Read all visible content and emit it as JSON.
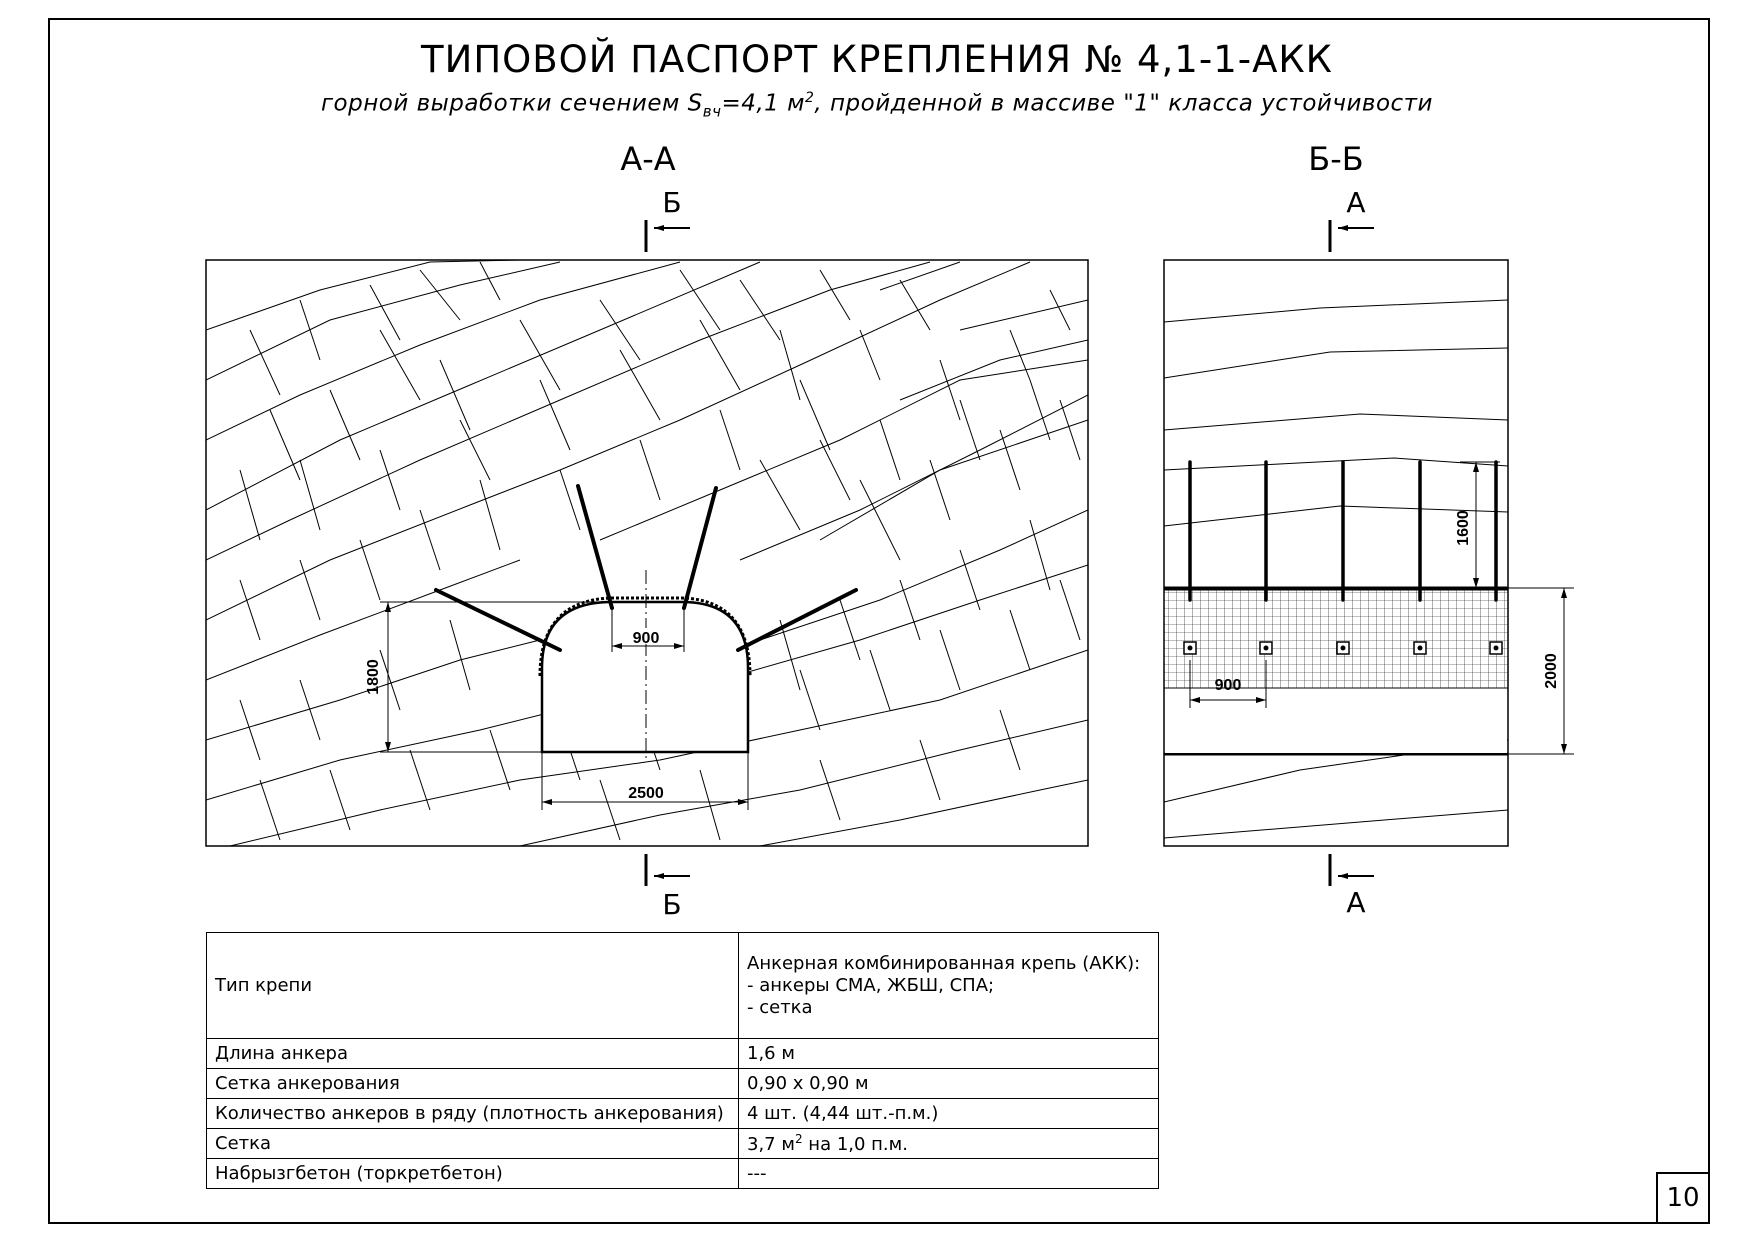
{
  "title": "ТИПОВОЙ ПАСПОРТ КРЕПЛЕНИЯ № 4,1-1-АКК",
  "subtitle": {
    "pre": "горной выработки сечением S",
    "sub": "вч",
    "mid": "=4,1 м",
    "sup": "2",
    "post": ", пройденной в массиве \"1\" класса устойчивости"
  },
  "sections": {
    "aa": {
      "label": "А-А",
      "cut_top": "Б",
      "cut_bottom": "Б"
    },
    "bb": {
      "label": "Б-Б",
      "cut_top": "А",
      "cut_bottom": "А"
    }
  },
  "dimensions": {
    "aa_arch_width": "900",
    "aa_height": "1800",
    "aa_width": "2500",
    "bb_anchor_length": "1600",
    "bb_spacing": "900",
    "bb_height": "2000"
  },
  "table": {
    "rows": [
      {
        "label": "Тип крепи",
        "value_lines": [
          "Анкерная комбинированная крепь (АКК):",
          "- анкеры СМА, ЖБШ, СПА;",
          "- сетка"
        ]
      },
      {
        "label": "Длина анкера",
        "value": "1,6 м"
      },
      {
        "label": "Сетка анкерования",
        "value": "0,90 х 0,90 м"
      },
      {
        "label": "Количество анкеров в ряду (плотность анкерования)",
        "value": "4 шт. (4,44 шт.-п.м.)"
      },
      {
        "label": "Сетка",
        "value_pre": "3,7 м",
        "value_sup": "2",
        "value_post": " на 1,0 п.м."
      },
      {
        "label": "Набрызгбетон (торкретбетон)",
        "value": "---"
      }
    ]
  },
  "page_number": "10"
}
